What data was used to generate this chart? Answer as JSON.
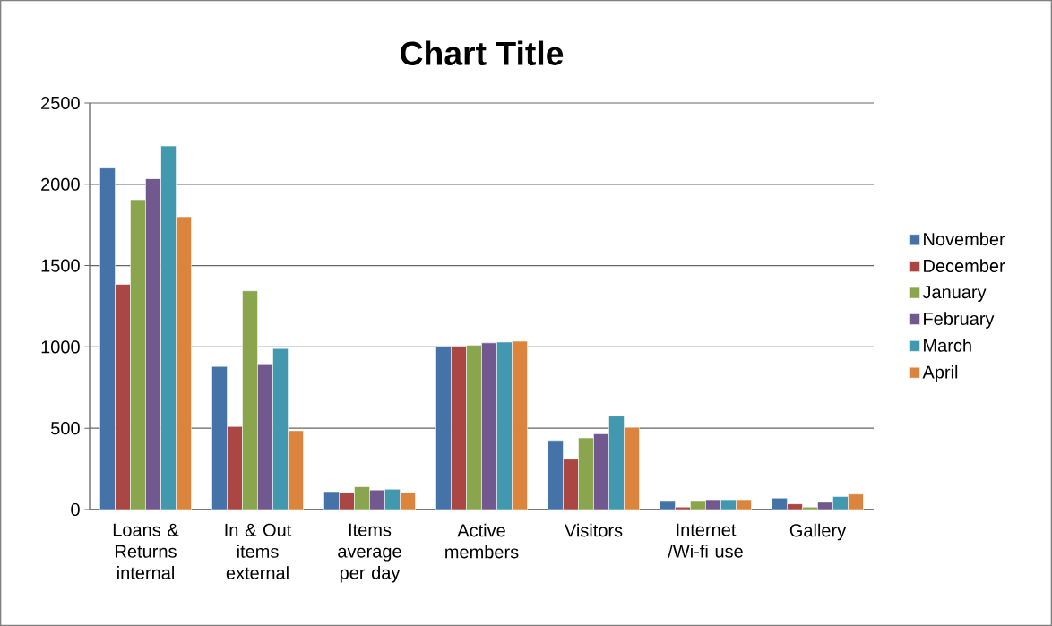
{
  "chart_data": {
    "type": "bar",
    "title": "Chart Title",
    "categories": [
      "Loans & Returns internal",
      "In & Out items external",
      "Items average per day",
      "Active members",
      "Visitors",
      "Internet /Wi-fi use",
      "Gallery"
    ],
    "series": [
      {
        "name": "November",
        "color": "#4572a7",
        "values": [
          2100,
          880,
          110,
          1000,
          425,
          55,
          70
        ]
      },
      {
        "name": "December",
        "color": "#aa4643",
        "values": [
          1385,
          510,
          105,
          1000,
          310,
          15,
          35
        ]
      },
      {
        "name": "January",
        "color": "#89a54e",
        "values": [
          1905,
          1345,
          140,
          1010,
          440,
          55,
          15
        ]
      },
      {
        "name": "February",
        "color": "#71588f",
        "values": [
          2035,
          890,
          120,
          1025,
          465,
          60,
          45
        ]
      },
      {
        "name": "March",
        "color": "#4198af",
        "values": [
          2235,
          990,
          125,
          1030,
          575,
          60,
          80
        ]
      },
      {
        "name": "April",
        "color": "#db843d",
        "values": [
          1800,
          485,
          105,
          1035,
          505,
          60,
          95
        ]
      }
    ],
    "ylim": [
      0,
      2500
    ],
    "yticks": [
      0,
      500,
      1000,
      1500,
      2000,
      2500
    ],
    "grid": "y",
    "legend": "right"
  }
}
